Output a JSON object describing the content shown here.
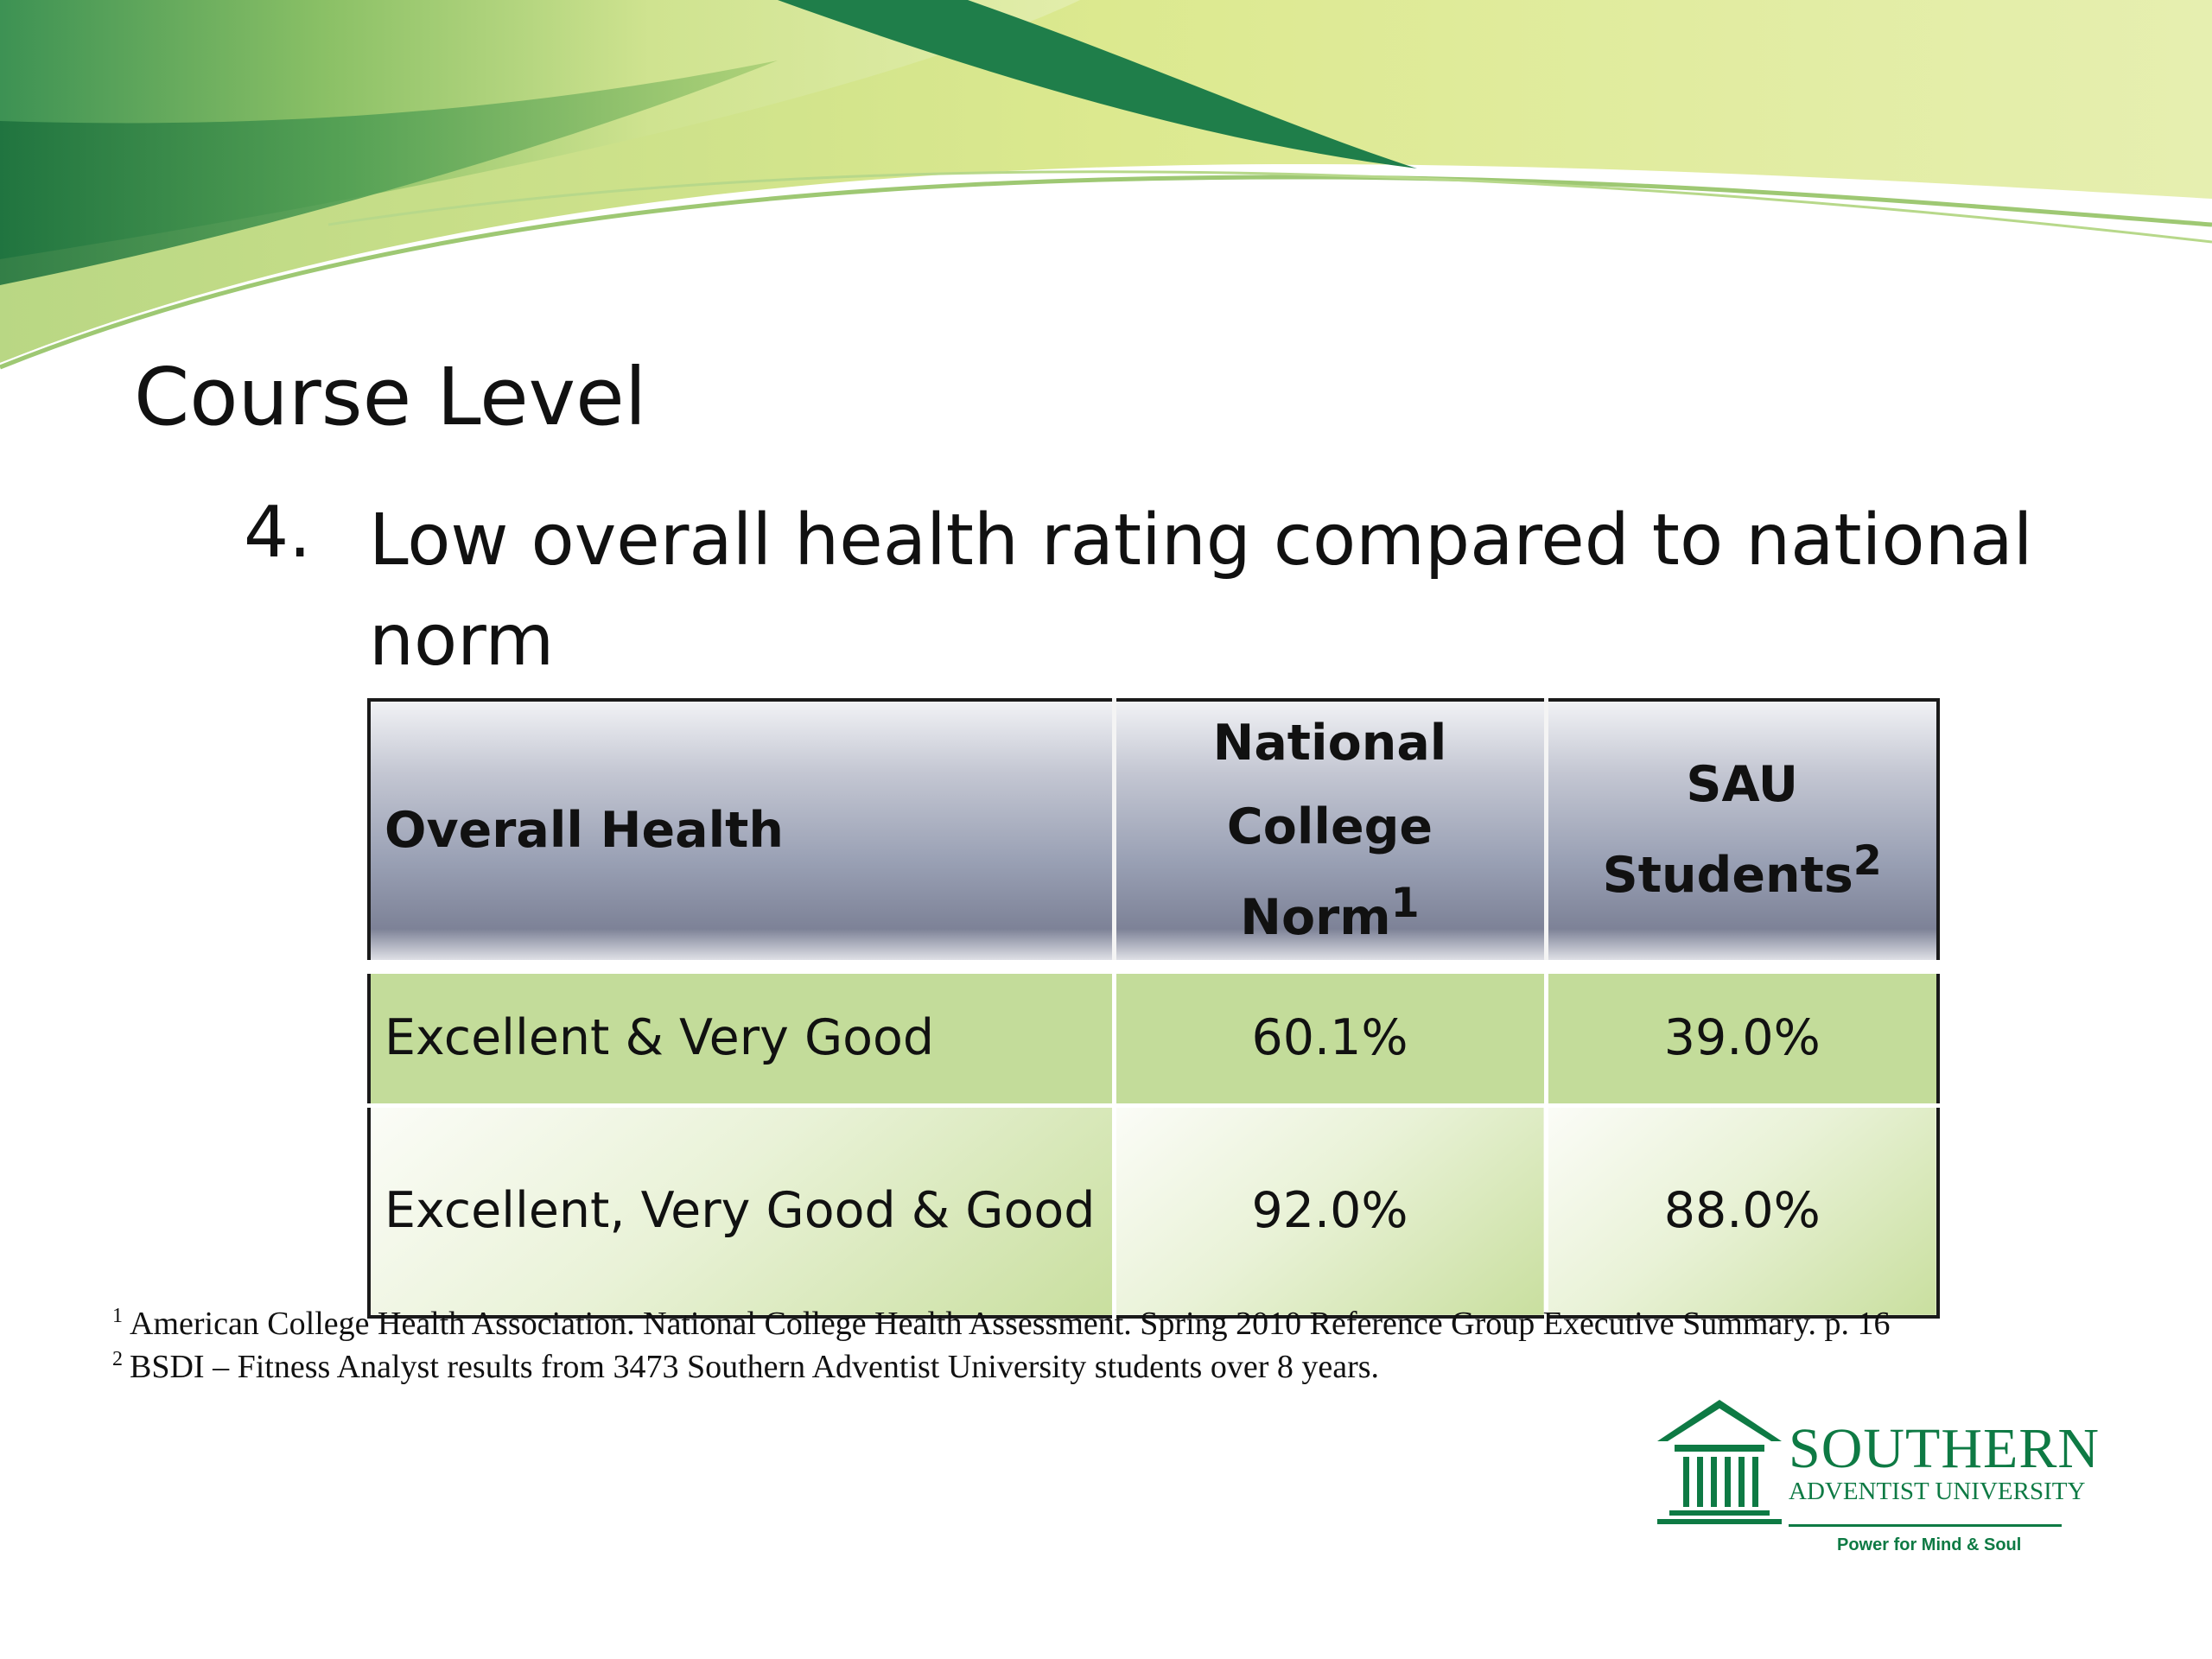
{
  "slide": {
    "title": "Course Level",
    "item_number": "4.",
    "item_text": "Low overall health rating compared to national norm"
  },
  "table": {
    "headers": [
      {
        "text": "Overall Health",
        "sup": ""
      },
      {
        "text": "National College Norm",
        "sup": "1"
      },
      {
        "text": "SAU Students",
        "sup": "2"
      }
    ],
    "rows": [
      {
        "label": "Excellent & Very Good",
        "national": "60.1%",
        "sau": "39.0%"
      },
      {
        "label": "Excellent, Very Good & Good",
        "national": "92.0%",
        "sau": "88.0%"
      }
    ]
  },
  "footnotes": [
    {
      "mark": "1",
      "text": "American College Health Association. National College Health Assessment. Spring 2010 Reference Group Executive Summary. p. 16"
    },
    {
      "mark": "2",
      "text": "BSDI – Fitness Analyst results from 3473 Southern Adventist University students over 8 years."
    }
  ],
  "logo": {
    "name": "SOUTHERN",
    "subtitle": "ADVENTIST UNIVERSITY",
    "tagline": "Power for Mind & Soul"
  },
  "colors": {
    "banner_dark_green": "#1f7e4a",
    "banner_mid_green": "#7db85c",
    "banner_light_green": "#dfe98e",
    "header_gradient": "#8d93a7",
    "row1_fill": "#c3dc9a",
    "logo_green": "#0e7a44"
  }
}
